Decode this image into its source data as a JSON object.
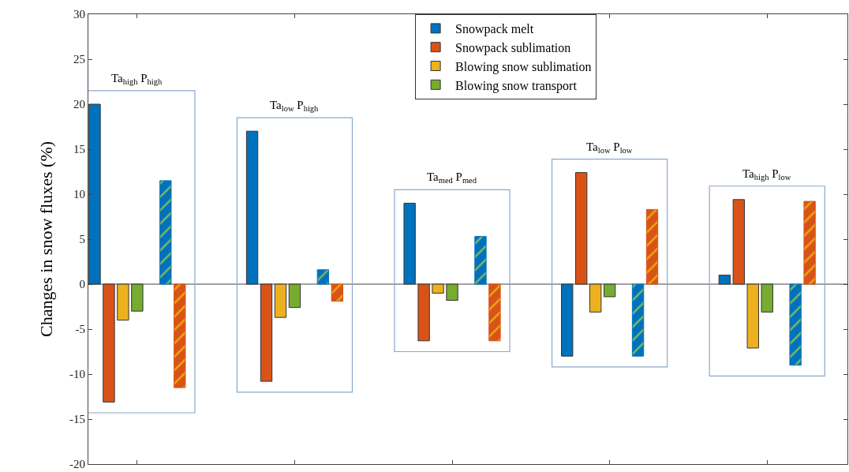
{
  "chart_data": {
    "type": "bar",
    "ylabel": "Changes in snow fluxes (%)",
    "categories": [
      null,
      null,
      null,
      null,
      null
    ],
    "series": [
      {
        "name": "Snowpack melt",
        "color": "#0072bd",
        "values": [
          20,
          17,
          9,
          -8,
          1
        ]
      },
      {
        "name": "Snowpack sublimation",
        "color": "#d95319",
        "values": [
          -13.1,
          -10.8,
          -6.3,
          12.4,
          9.4
        ]
      },
      {
        "name": "Blowing snow sublimation",
        "color": "#edb120",
        "values": [
          -4,
          -3.7,
          -1,
          -3.1,
          -7.1
        ]
      },
      {
        "name": "Blowing snow transport",
        "color": "#77ac30",
        "values": [
          -3,
          -2.6,
          -1.8,
          -1.4,
          -3.1
        ]
      },
      {
        "color": "#0072bd",
        "values": [
          11.5,
          1.6,
          5.3,
          -8,
          -9
        ]
      },
      {
        "color": "#d95319",
        "values": [
          -11.5,
          -1.9,
          -6.3,
          8.3,
          9.2
        ]
      }
    ],
    "annotations": [
      "Ta$_{high}$ P$_{high}$",
      "Ta$_{low}$ P$_{high}$",
      "Ta$_{med}$ P$_{med}$",
      "Ta$_{low}$ P$_{low}$",
      "Ta$_{high}$ P$_{low}$"
    ],
    "ylim": [
      -20,
      30
    ],
    "yticks": [
      -20,
      -15,
      -10,
      -5,
      0,
      5,
      10,
      15,
      20,
      25,
      30
    ],
    "ref_lines": [
      {
        "axis": "y",
        "value": 0,
        "color": "#808080"
      }
    ],
    "grid": false,
    "legend": "top"
  }
}
